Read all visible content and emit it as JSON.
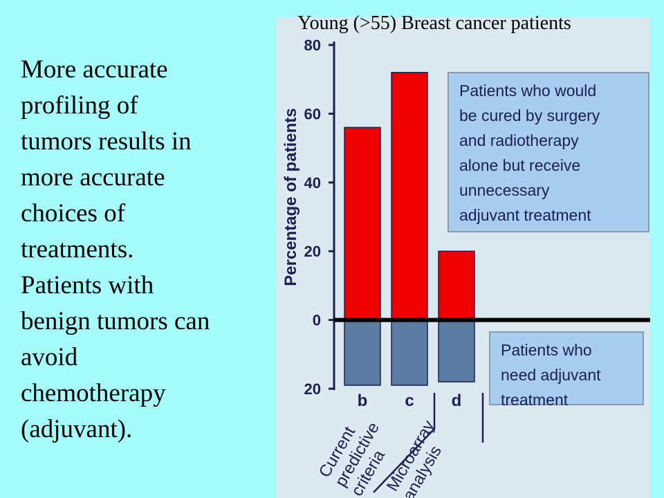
{
  "chart_data": {
    "type": "bar",
    "title": "Young (>55) Breast cancer patients",
    "ylabel": "Percentage of patients",
    "categories": [
      "b",
      "c",
      "d"
    ],
    "group_labels": [
      "Current predictive criteria",
      "Microarray analysis"
    ],
    "series": [
      {
        "name": "Patients who would be cured by surgery and radiotherapy alone but receive unnecessary adjuvant treatment",
        "color": "#ee0000",
        "values": [
          56,
          72,
          20
        ]
      },
      {
        "name": "Patients who need adjuvant treatment",
        "color": "#5b7ba3",
        "values": [
          -19,
          -19,
          -18
        ]
      }
    ],
    "ylim": [
      -20,
      80
    ],
    "yticks": [
      {
        "value": -20,
        "label": "20"
      },
      0,
      20,
      40,
      60,
      80
    ]
  },
  "body": {
    "lines": [
      "More accurate",
      "profiling of",
      "tumors results in",
      "more accurate",
      "choices of",
      "treatments.",
      "Patients with",
      "benign tumors can",
      "avoid",
      "chemotherapy",
      "(adjuvant)."
    ]
  }
}
